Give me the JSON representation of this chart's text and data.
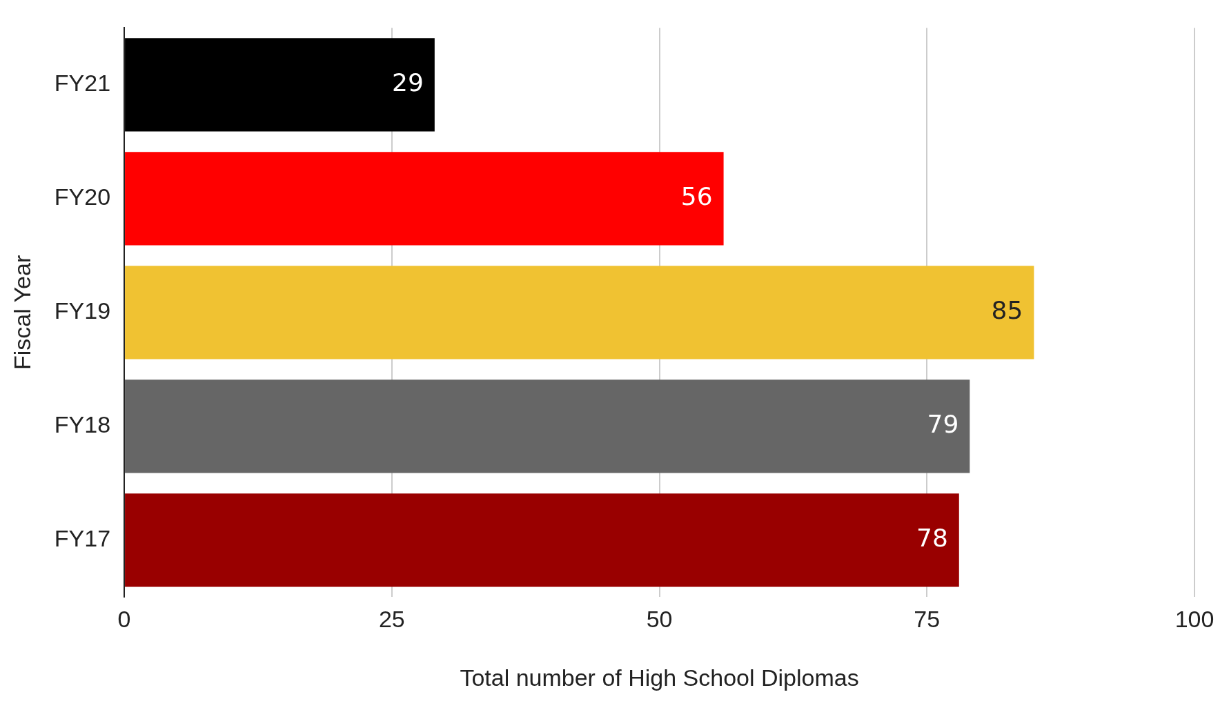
{
  "chart_data": {
    "type": "bar",
    "orientation": "horizontal",
    "xlabel": "Total number of High School Diplomas",
    "ylabel": "Fiscal Year",
    "categories": [
      "FY21",
      "FY20",
      "FY19",
      "FY18",
      "FY17"
    ],
    "values": [
      29,
      56,
      85,
      79,
      78
    ],
    "colors": [
      "#000000",
      "#ff0000",
      "#f0c232",
      "#666666",
      "#990000"
    ],
    "xlim": [
      0,
      100
    ],
    "xticks": [
      0,
      25,
      50,
      75,
      100
    ],
    "grid": "x",
    "data_labels": true
  }
}
